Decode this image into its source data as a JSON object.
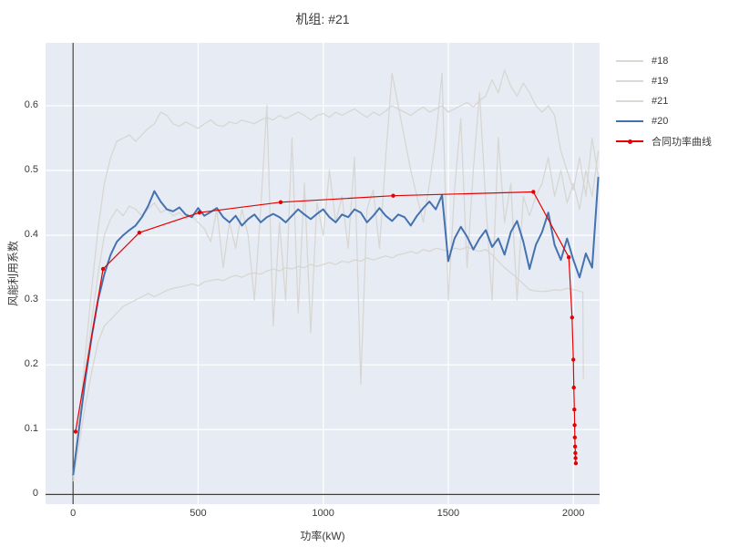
{
  "chart_data": {
    "type": "line",
    "title": "机组: #21",
    "xlabel": "功率(kW)",
    "ylabel": "风能利用系数",
    "x_min": -110,
    "x_max": 2105,
    "y_min": -0.015,
    "y_max": 0.697,
    "x_tick_vals": [
      0,
      500,
      1000,
      1500,
      2000
    ],
    "x_tick_labels": [
      "0",
      "500",
      "1000",
      "1500",
      "2000"
    ],
    "y_tick_vals": [
      0,
      0.1,
      0.2,
      0.3,
      0.4,
      0.5,
      0.6
    ],
    "y_tick_labels": [
      "0",
      "0.1",
      "0.2",
      "0.3",
      "0.4",
      "0.5",
      "0.6"
    ],
    "grid": true,
    "grid_color": "#ffffff",
    "plot_bg": "#e7ecf4",
    "axis_line_color": "#404040",
    "text_color": "#3a3a3a",
    "legend_position": "right",
    "series": [
      {
        "name": "#18",
        "color": "#d5d2cd",
        "width": 1.3,
        "opacity": 0.85,
        "x_start": 0,
        "x_step": 25,
        "values": [
          0.03,
          0.12,
          0.22,
          0.32,
          0.41,
          0.48,
          0.52,
          0.545,
          0.55,
          0.555,
          0.545,
          0.555,
          0.565,
          0.572,
          0.59,
          0.585,
          0.572,
          0.568,
          0.575,
          0.57,
          0.565,
          0.572,
          0.578,
          0.57,
          0.568,
          0.575,
          0.572,
          0.578,
          0.575,
          0.572,
          0.578,
          0.582,
          0.578,
          0.585,
          0.58,
          0.585,
          0.59,
          0.585,
          0.578,
          0.585,
          0.588,
          0.582,
          0.59,
          0.585,
          0.59,
          0.595,
          0.588,
          0.582,
          0.59,
          0.585,
          0.592,
          0.6,
          0.595,
          0.59,
          0.585,
          0.592,
          0.598,
          0.59,
          0.595,
          0.6,
          0.59,
          0.595,
          0.6,
          0.605,
          0.598,
          0.608,
          0.615,
          0.64,
          0.62,
          0.655,
          0.63,
          0.615,
          0.635,
          0.62,
          0.6,
          0.59,
          0.6,
          0.585,
          0.53,
          0.5,
          0.47,
          0.52,
          0.46,
          0.55,
          0.49
        ]
      },
      {
        "name": "#19",
        "color": "#d5d2cd",
        "width": 1.3,
        "opacity": 0.85,
        "x_start": 0,
        "x_step": 25,
        "values": [
          0.02,
          0.08,
          0.14,
          0.19,
          0.235,
          0.26,
          0.27,
          0.28,
          0.29,
          0.295,
          0.3,
          0.305,
          0.31,
          0.305,
          0.31,
          0.315,
          0.318,
          0.32,
          0.322,
          0.325,
          0.322,
          0.328,
          0.33,
          0.332,
          0.33,
          0.335,
          0.338,
          0.335,
          0.34,
          0.342,
          0.34,
          0.345,
          0.348,
          0.345,
          0.35,
          0.348,
          0.352,
          0.35,
          0.355,
          0.352,
          0.355,
          0.358,
          0.355,
          0.36,
          0.358,
          0.362,
          0.36,
          0.365,
          0.362,
          0.365,
          0.368,
          0.365,
          0.37,
          0.372,
          0.375,
          0.372,
          0.378,
          0.375,
          0.38,
          0.378,
          0.375,
          0.38,
          0.378,
          0.382,
          0.378,
          0.375,
          0.378,
          0.37,
          0.36,
          0.35,
          0.342,
          0.334,
          0.325,
          0.316,
          0.314,
          0.313,
          0.314,
          0.316,
          0.315,
          0.318,
          0.316,
          0.314
        ],
        "extra_points": [
          [
            2038,
            0.312
          ],
          [
            2040,
            0.178
          ]
        ]
      },
      {
        "name": "#21",
        "color": "#d5d2cd",
        "width": 1.3,
        "opacity": 0.85,
        "x_start": 0,
        "x_step": 25,
        "values": [
          0.025,
          0.1,
          0.19,
          0.27,
          0.34,
          0.4,
          0.425,
          0.44,
          0.43,
          0.445,
          0.44,
          0.43,
          0.44,
          0.45,
          0.435,
          0.44,
          0.43,
          0.435,
          0.425,
          0.43,
          0.42,
          0.41,
          0.39,
          0.44,
          0.35,
          0.42,
          0.38,
          0.44,
          0.4,
          0.3,
          0.44,
          0.6,
          0.26,
          0.42,
          0.3,
          0.55,
          0.28,
          0.48,
          0.25,
          0.45,
          0.4,
          0.5,
          0.42,
          0.46,
          0.38,
          0.52,
          0.17,
          0.44,
          0.47,
          0.38,
          0.52,
          0.65,
          0.6,
          0.55,
          0.5,
          0.46,
          0.42,
          0.48,
          0.55,
          0.65,
          0.3,
          0.47,
          0.58,
          0.35,
          0.5,
          0.62,
          0.45,
          0.3,
          0.55,
          0.42,
          0.48,
          0.3,
          0.46,
          0.43,
          0.46,
          0.48,
          0.52,
          0.46,
          0.5,
          0.45,
          0.48,
          0.44,
          0.5,
          0.46,
          0.53
        ]
      },
      {
        "name": "#20",
        "color": "#4472b0",
        "width": 2,
        "opacity": 1,
        "x_start": 0,
        "x_step": 25,
        "values": [
          0.03,
          0.105,
          0.18,
          0.245,
          0.3,
          0.34,
          0.37,
          0.39,
          0.4,
          0.408,
          0.415,
          0.428,
          0.445,
          0.468,
          0.452,
          0.44,
          0.437,
          0.443,
          0.432,
          0.428,
          0.442,
          0.43,
          0.436,
          0.442,
          0.428,
          0.42,
          0.43,
          0.415,
          0.425,
          0.432,
          0.42,
          0.428,
          0.433,
          0.428,
          0.42,
          0.43,
          0.44,
          0.432,
          0.425,
          0.433,
          0.44,
          0.428,
          0.42,
          0.432,
          0.428,
          0.44,
          0.435,
          0.42,
          0.43,
          0.442,
          0.43,
          0.422,
          0.432,
          0.428,
          0.415,
          0.43,
          0.442,
          0.452,
          0.44,
          0.462,
          0.36,
          0.395,
          0.413,
          0.398,
          0.378,
          0.395,
          0.408,
          0.382,
          0.395,
          0.37,
          0.405,
          0.422,
          0.39,
          0.348,
          0.385,
          0.405,
          0.435,
          0.385,
          0.362,
          0.395,
          0.362,
          0.335,
          0.372,
          0.35,
          0.49
        ]
      },
      {
        "name": "合同功率曲线",
        "color": "#e60000",
        "width": 1.2,
        "opacity": 1,
        "markers": true,
        "points": [
          [
            10,
            0.097
          ],
          [
            120,
            0.348
          ],
          [
            265,
            0.404
          ],
          [
            505,
            0.435
          ],
          [
            830,
            0.451
          ],
          [
            1280,
            0.461
          ],
          [
            1840,
            0.467
          ],
          [
            1982,
            0.366
          ],
          [
            1995,
            0.273
          ],
          [
            2000,
            0.208
          ],
          [
            2002,
            0.165
          ],
          [
            2004,
            0.131
          ],
          [
            2005,
            0.107
          ],
          [
            2006,
            0.088
          ],
          [
            2007,
            0.074
          ],
          [
            2008,
            0.064
          ],
          [
            2009,
            0.056
          ],
          [
            2010,
            0.048
          ]
        ]
      }
    ]
  }
}
